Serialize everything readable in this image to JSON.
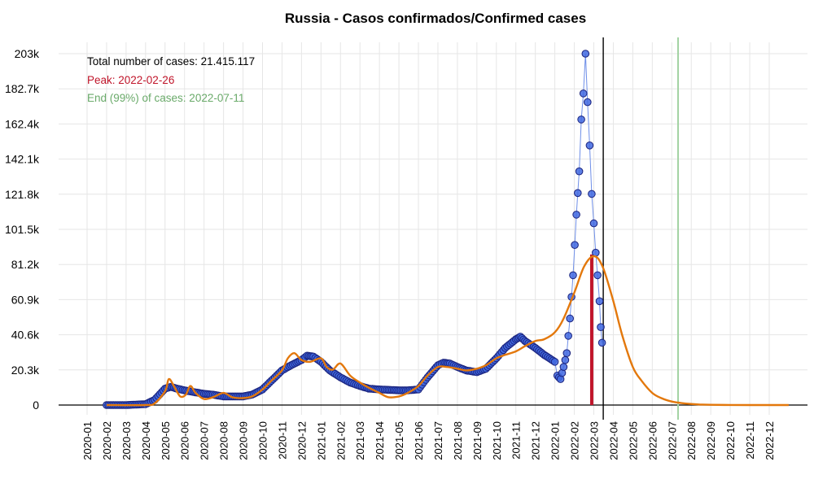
{
  "chart_data": {
    "type": "scatter",
    "title": "Russia - Casos confirmados/Confirmed cases",
    "xlabel": "",
    "ylabel": "",
    "grid": true,
    "y_ticks": [
      {
        "value": 0,
        "label": "0"
      },
      {
        "value": 20300,
        "label": "20.3k"
      },
      {
        "value": 40600,
        "label": "40.6k"
      },
      {
        "value": 60900,
        "label": "60.9k"
      },
      {
        "value": 81200,
        "label": "81.2k"
      },
      {
        "value": 101500,
        "label": "101.5k"
      },
      {
        "value": 121800,
        "label": "121.8k"
      },
      {
        "value": 142100,
        "label": "142.1k"
      },
      {
        "value": 162400,
        "label": "162.4k"
      },
      {
        "value": 182700,
        "label": "182.7k"
      },
      {
        "value": 203000,
        "label": "203k"
      }
    ],
    "ylim": [
      0,
      203000
    ],
    "x_ticks": [
      "2020-01",
      "2020-02",
      "2020-03",
      "2020-04",
      "2020-05",
      "2020-06",
      "2020-07",
      "2020-08",
      "2020-09",
      "2020-10",
      "2020-11",
      "2020-12",
      "2021-01",
      "2021-02",
      "2021-03",
      "2021-04",
      "2021-05",
      "2021-06",
      "2021-07",
      "2021-08",
      "2021-09",
      "2021-10",
      "2021-11",
      "2021-12",
      "2022-01",
      "2022-02",
      "2022-03",
      "2022-04",
      "2022-05",
      "2022-06",
      "2022-07",
      "2022-08",
      "2022-09",
      "2022-10",
      "2022-11",
      "2022-12"
    ],
    "series": [
      {
        "kind": "points",
        "color": "#4169e1",
        "edge_color": "#1a237e",
        "line_color": "#6f8fe8",
        "x": [
          "2020-02-01",
          "2020-03-01",
          "2020-04-01",
          "2020-04-15",
          "2020-05-01",
          "2020-05-10",
          "2020-05-20",
          "2020-06-01",
          "2020-06-15",
          "2020-07-01",
          "2020-07-15",
          "2020-08-01",
          "2020-08-15",
          "2020-09-01",
          "2020-09-15",
          "2020-10-01",
          "2020-10-15",
          "2020-11-01",
          "2020-11-15",
          "2020-12-01",
          "2020-12-10",
          "2020-12-20",
          "2021-01-01",
          "2021-01-15",
          "2021-02-01",
          "2021-02-15",
          "2021-03-01",
          "2021-03-15",
          "2021-04-01",
          "2021-04-15",
          "2021-05-01",
          "2021-05-15",
          "2021-06-01",
          "2021-06-15",
          "2021-07-01",
          "2021-07-10",
          "2021-07-20",
          "2021-08-01",
          "2021-08-15",
          "2021-09-01",
          "2021-09-15",
          "2021-10-01",
          "2021-10-15",
          "2021-11-01",
          "2021-11-08",
          "2021-11-15",
          "2021-12-01",
          "2021-12-15",
          "2022-01-01",
          "2022-01-05",
          "2022-01-10",
          "2022-01-15",
          "2022-01-20",
          "2022-01-25",
          "2022-01-30",
          "2022-02-04",
          "2022-02-08",
          "2022-02-11",
          "2022-02-14",
          "2022-02-17",
          "2022-02-20",
          "2022-02-23",
          "2022-02-26",
          "2022-03-01",
          "2022-03-04",
          "2022-03-07",
          "2022-03-10",
          "2022-03-12",
          "2022-03-14"
        ],
        "y": [
          0,
          0,
          500,
          3000,
          9500,
          10500,
          9500,
          8500,
          7500,
          6500,
          6000,
          5000,
          5000,
          5000,
          6000,
          9000,
          14000,
          20000,
          23000,
          26000,
          28500,
          28000,
          25000,
          20000,
          16000,
          13000,
          11000,
          9500,
          9000,
          8800,
          8500,
          8500,
          9000,
          16000,
          23000,
          24500,
          24000,
          22000,
          20000,
          19000,
          21000,
          27000,
          33000,
          38000,
          39500,
          37000,
          33000,
          29000,
          25000,
          17000,
          15000,
          22000,
          30000,
          50000,
          75000,
          110000,
          135000,
          165000,
          180000,
          203000,
          175000,
          150000,
          122000,
          105000,
          88000,
          75000,
          60000,
          45000,
          36000
        ]
      },
      {
        "kind": "fit",
        "color": "#e3780c",
        "x": [
          "2020-02-01",
          "2020-04-01",
          "2020-04-15",
          "2020-05-01",
          "2020-05-07",
          "2020-05-15",
          "2020-05-25",
          "2020-06-03",
          "2020-06-10",
          "2020-06-18",
          "2020-07-01",
          "2020-07-15",
          "2020-08-01",
          "2020-08-15",
          "2020-09-01",
          "2020-09-15",
          "2020-10-01",
          "2020-10-15",
          "2020-11-01",
          "2020-11-10",
          "2020-11-20",
          "2020-12-01",
          "2020-12-15",
          "2021-01-01",
          "2021-01-10",
          "2021-01-20",
          "2021-02-01",
          "2021-02-15",
          "2021-03-01",
          "2021-03-15",
          "2021-04-01",
          "2021-04-15",
          "2021-05-01",
          "2021-05-15",
          "2021-06-01",
          "2021-06-15",
          "2021-07-01",
          "2021-07-15",
          "2021-08-01",
          "2021-08-15",
          "2021-09-01",
          "2021-09-15",
          "2021-10-01",
          "2021-10-15",
          "2021-11-01",
          "2021-11-15",
          "2021-12-01",
          "2021-12-15",
          "2022-01-01",
          "2022-01-15",
          "2022-02-01",
          "2022-02-15",
          "2022-03-01",
          "2022-03-15",
          "2022-04-01",
          "2022-04-15",
          "2022-05-01",
          "2022-05-15",
          "2022-06-01",
          "2022-06-15",
          "2022-07-01",
          "2022-07-15",
          "2022-08-01",
          "2022-08-15",
          "2022-09-01",
          "2022-10-01",
          "2022-11-01",
          "2022-12-01",
          "2023-01-01"
        ],
        "y": [
          0,
          0,
          1000,
          8000,
          15000,
          11000,
          5000,
          6000,
          11000,
          7000,
          3500,
          4500,
          7000,
          4500,
          4000,
          5000,
          9000,
          14000,
          20000,
          27000,
          30000,
          26000,
          25000,
          27000,
          22000,
          20500,
          24000,
          17000,
          13000,
          10000,
          7000,
          4500,
          5000,
          7000,
          11000,
          17000,
          22000,
          22000,
          21000,
          20000,
          21000,
          23000,
          27000,
          29000,
          31000,
          34000,
          37000,
          38000,
          42000,
          50000,
          65000,
          80000,
          86000,
          80000,
          60000,
          40000,
          22000,
          14000,
          7000,
          4000,
          2000,
          1200,
          600,
          300,
          150,
          30,
          5,
          0,
          0
        ]
      }
    ],
    "vertical_lines": [
      {
        "name": "peak",
        "x": "2022-02-26",
        "color": "#c0152a",
        "from_y": 0,
        "to_y": 87000
      },
      {
        "name": "today",
        "x": "2022-03-16",
        "color": "#000000",
        "full": true
      },
      {
        "name": "end",
        "x": "2022-07-11",
        "color": "#a3d3a3",
        "full": true
      }
    ],
    "annotations": {
      "total_label": "Total number of cases: 21.415.117",
      "total_color": "#000000",
      "peak_label": "Peak: 2022-02-26",
      "peak_color": "#c0152a",
      "end_label": "End (99%) of cases: 2022-07-11",
      "end_color": "#6aaa6a"
    }
  }
}
